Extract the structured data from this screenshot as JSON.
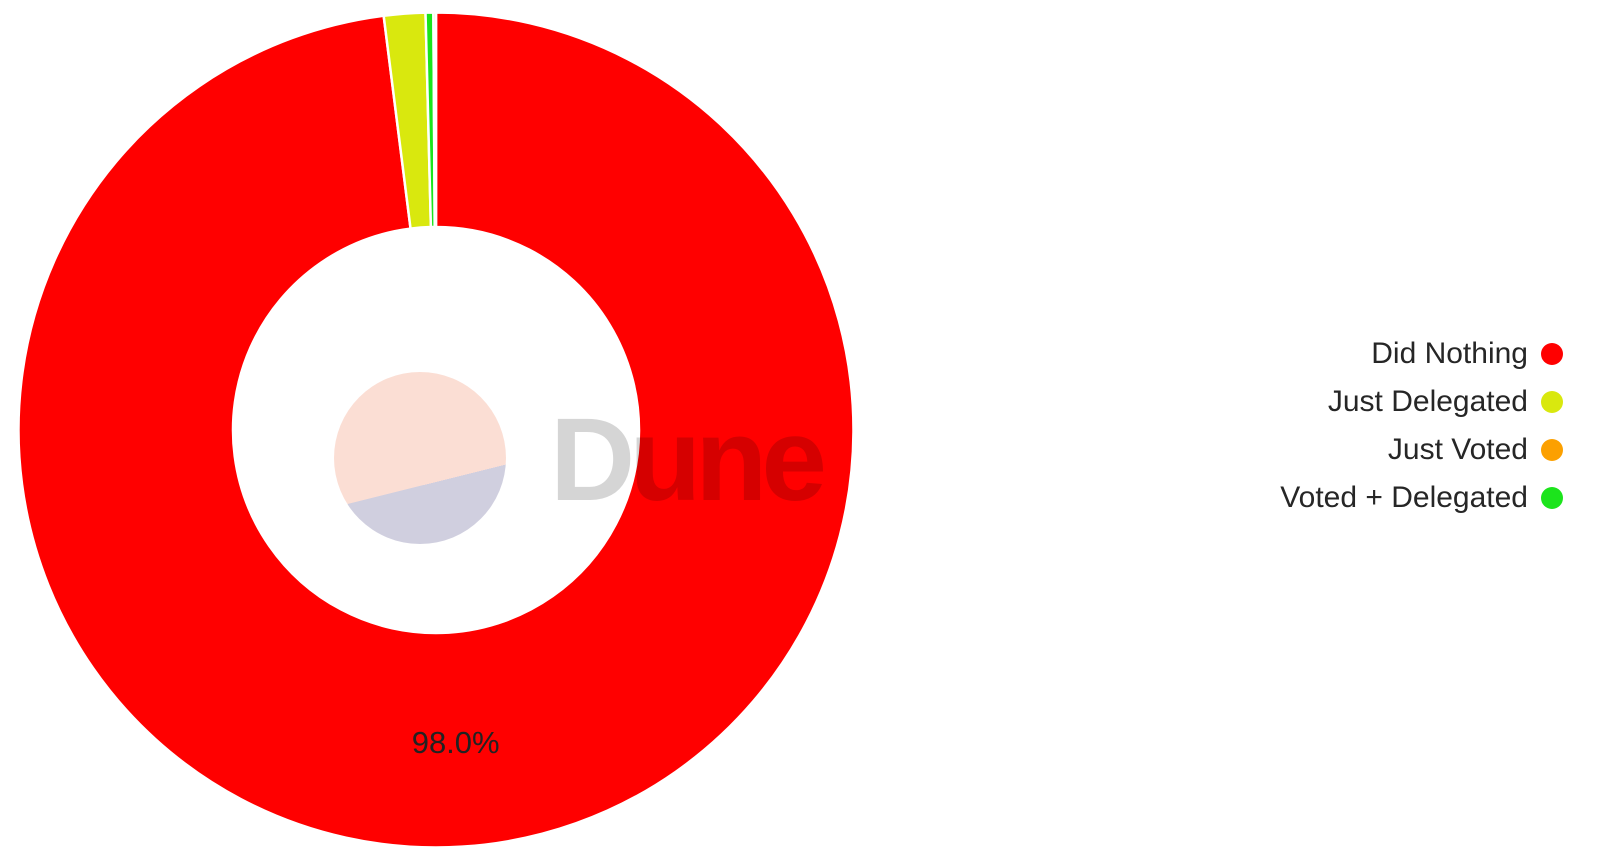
{
  "watermark": {
    "text": "Dune",
    "logo": "dune-circle-logo"
  },
  "chart_data": {
    "type": "pie",
    "subtype": "donut",
    "title": "",
    "background": "#ffffff",
    "series": [
      {
        "label": "Did Nothing",
        "value": 98.0,
        "color": "#ff0000"
      },
      {
        "label": "Just Delegated",
        "value": 1.6,
        "color": "#d9e80e"
      },
      {
        "label": "Just Voted",
        "value": 0.1,
        "color": "#fca000"
      },
      {
        "label": "Voted + Delegated",
        "value": 0.3,
        "color": "#1ce41c"
      }
    ],
    "legend_order": [
      "Did Nothing",
      "Just Delegated",
      "Just Voted",
      "Voted + Delegated"
    ],
    "clockwise_draw_order": [
      "Did Nothing",
      "Just Delegated",
      "Voted + Delegated",
      "Just Voted"
    ],
    "start_angle": "twelve-oclock",
    "direction": "clockwise",
    "inner_radius_ratio": 0.49,
    "visible_value_label": "98.0%",
    "labeled_slice": "Did Nothing",
    "legend_position": "right",
    "slice_border_color": "#ffffff"
  }
}
